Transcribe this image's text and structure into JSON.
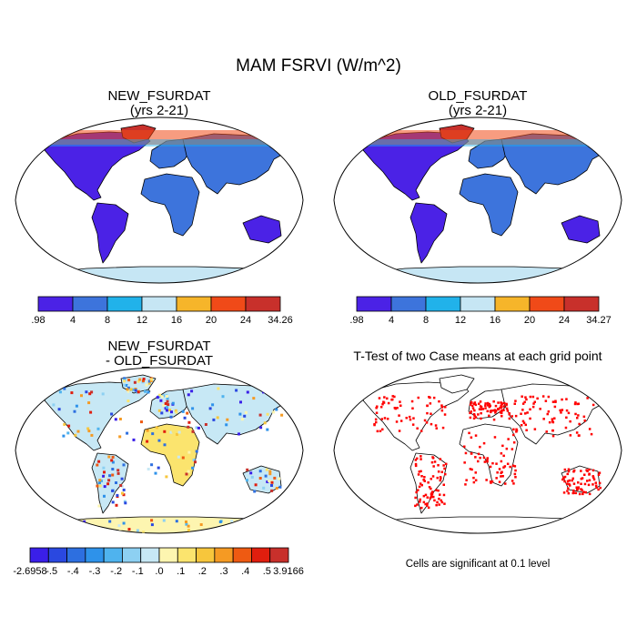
{
  "title": "MAM FSRVI (W/m^2)",
  "panels": [
    {
      "title_line1": "NEW_FSURDAT",
      "title_line2": "(yrs 2-21)",
      "colorbar": {
        "labels": [
          ".98",
          "4",
          "8",
          "12",
          "16",
          "20",
          "24",
          "34.26"
        ],
        "colors": [
          "#4b22e6",
          "#3d74dc",
          "#21b2ea",
          "#c6e6f4",
          "#f6b52a",
          "#f04a18",
          "#c8302b"
        ]
      }
    },
    {
      "title_line1": "OLD_FSURDAT",
      "title_line2": "(yrs 2-21)",
      "colorbar": {
        "labels": [
          ".98",
          "4",
          "8",
          "12",
          "16",
          "20",
          "24",
          "34.27"
        ],
        "colors": [
          "#4b22e6",
          "#3d74dc",
          "#21b2ea",
          "#c6e6f4",
          "#f6b52a",
          "#f04a18",
          "#c8302b"
        ]
      }
    },
    {
      "title_line1": "NEW_FSURDAT",
      "title_line2": "- OLD_FSURDAT",
      "colorbar": {
        "labels": [
          "-2.6958",
          "-.5",
          "-.4",
          "-.3",
          "-.2",
          "-.1",
          ".0",
          ".1",
          ".2",
          ".3",
          ".4",
          ".5",
          "3.9166"
        ],
        "colors": [
          "#3a1fe8",
          "#2a48e0",
          "#2d6fe0",
          "#2e92ea",
          "#4fb3ee",
          "#8dd0f2",
          "#c7e8f5",
          "#fdf5b0",
          "#fbe46e",
          "#f7c63c",
          "#f59a23",
          "#ee5a12",
          "#e01e0e",
          "#c8302b"
        ]
      }
    },
    {
      "title": "T-Test of two Case means at each grid point",
      "footnote": "Cells are significant at 0.1 level"
    }
  ],
  "chart_data": [
    {
      "type": "heatmap",
      "title": "NEW_FSURDAT (yrs 2-21)",
      "levels": [
        0.98,
        4,
        8,
        12,
        16,
        20,
        24,
        34.26
      ],
      "colors": [
        "#4b22e6",
        "#3d74dc",
        "#21b2ea",
        "#c6e6f4",
        "#f6b52a",
        "#f04a18",
        "#c8302b"
      ]
    },
    {
      "type": "heatmap",
      "title": "OLD_FSURDAT (yrs 2-21)",
      "levels": [
        0.98,
        4,
        8,
        12,
        16,
        20,
        24,
        34.27
      ],
      "colors": [
        "#4b22e6",
        "#3d74dc",
        "#21b2ea",
        "#c6e6f4",
        "#f6b52a",
        "#f04a18",
        "#c8302b"
      ]
    },
    {
      "type": "heatmap",
      "title": "NEW_FSURDAT - OLD_FSURDAT",
      "levels": [
        -2.6958,
        -0.5,
        -0.4,
        -0.3,
        -0.2,
        -0.1,
        0.0,
        0.1,
        0.2,
        0.3,
        0.4,
        0.5,
        3.9166
      ]
    },
    {
      "type": "heatmap",
      "title": "T-Test of two Case means at each grid point",
      "annotation": "Cells are significant at 0.1 level",
      "significant_color": "#ff0000"
    }
  ]
}
